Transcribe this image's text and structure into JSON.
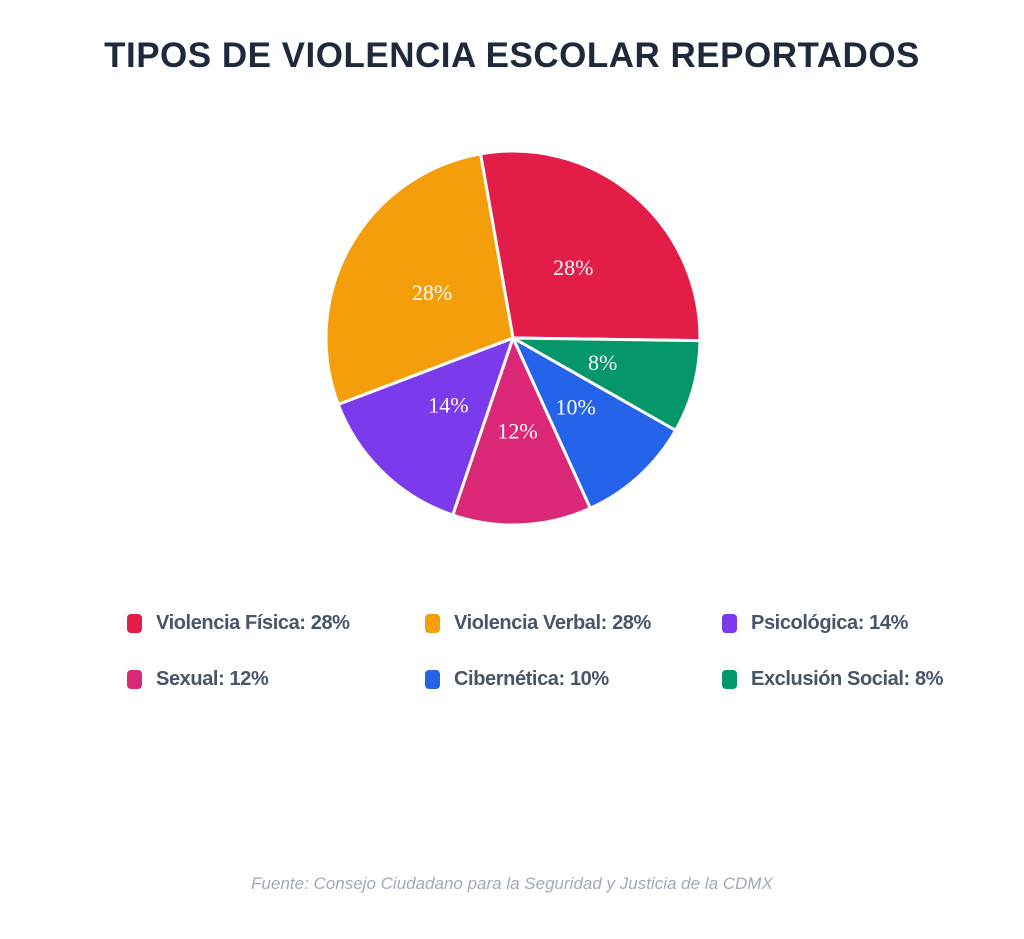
{
  "title": "TIPOS DE VIOLENCIA ESCOLAR REPORTADOS",
  "footer": "Fuente: Consejo Ciudadano para la Seguridad y Justicia de la CDMX",
  "colors": {
    "background": "#ffffff",
    "title_text": "#1e2a3c",
    "legend_text": "#475569",
    "footer_text": "#9faabb",
    "slice_label_text": "#ffffff",
    "slice_separator": "#ffffff"
  },
  "chart_data": {
    "type": "pie",
    "title": "TIPOS DE VIOLENCIA ESCOLAR REPORTADOS",
    "source": "Fuente: Consejo Ciudadano para la Seguridad y Justicia de la CDMX",
    "legend_position": "bottom",
    "start_angle_deg": -10,
    "direction": "clockwise",
    "draw_order": [
      0,
      5,
      4,
      3,
      2,
      1
    ],
    "slices": [
      {
        "label": "Violencia Física",
        "value": 28,
        "pct_label": "28%",
        "legend_label": "Violencia Física: 28%",
        "color": "#e11d48"
      },
      {
        "label": "Violencia Verbal",
        "value": 28,
        "pct_label": "28%",
        "legend_label": "Violencia Verbal: 28%",
        "color": "#f59e0b"
      },
      {
        "label": "Psicológica",
        "value": 14,
        "pct_label": "14%",
        "legend_label": "Psicológica: 14%",
        "color": "#7c3aed"
      },
      {
        "label": "Sexual",
        "value": 12,
        "pct_label": "12%",
        "legend_label": "Sexual: 12%",
        "color": "#db2777"
      },
      {
        "label": "Cibernética",
        "value": 10,
        "pct_label": "10%",
        "legend_label": "Cibernética: 10%",
        "color": "#2563eb"
      },
      {
        "label": "Exclusión Social",
        "value": 8,
        "pct_label": "8%",
        "legend_label": "Exclusión Social: 8%",
        "color": "#059669"
      }
    ]
  }
}
